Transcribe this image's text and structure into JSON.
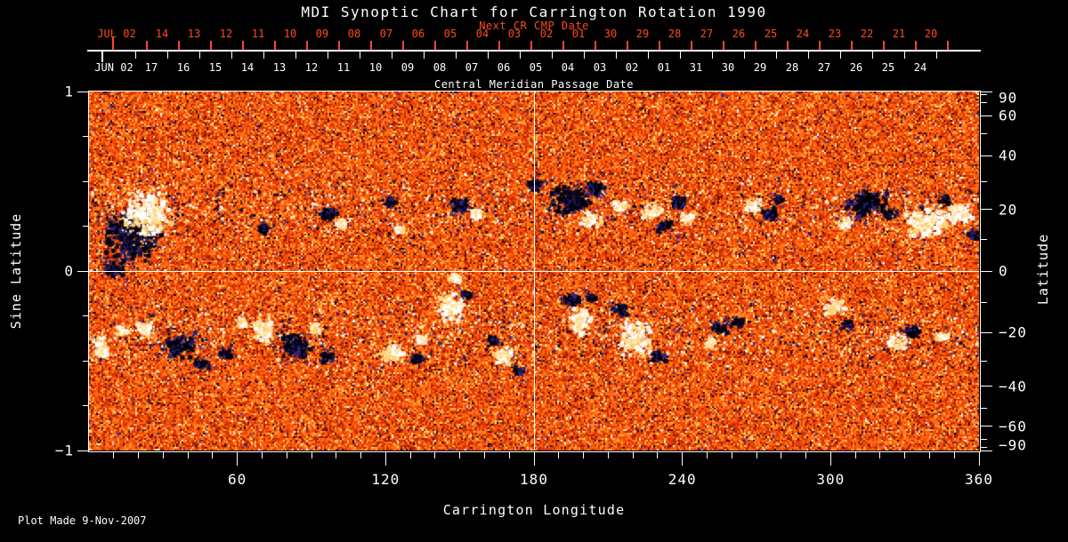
{
  "chart_data": {
    "type": "heatmap",
    "title": "MDI Synoptic Chart for Carrington Rotation 1990",
    "footer": "Plot Made  9-Nov-2007",
    "xlabel": "Carrington Longitude",
    "x_range": [
      0,
      360
    ],
    "x_major_tick_values": [
      60,
      120,
      180,
      240,
      300,
      360
    ],
    "x_major_tick_labels": [
      "60",
      "120",
      "180",
      "240",
      "300",
      "360"
    ],
    "x_minor_step_deg": 10,
    "left_axis": {
      "label": "Sine Latitude",
      "range": [
        -1,
        1
      ],
      "tick_values": [
        1,
        0,
        -1
      ],
      "tick_labels": [
        "1",
        "0",
        "−1"
      ],
      "minor_tick_values": [
        0.75,
        0.5,
        0.25,
        -0.25,
        -0.5,
        -0.75
      ]
    },
    "right_axis": {
      "label": "Latitude",
      "scale": "sine-latitude",
      "tick_values": [
        90,
        60,
        40,
        20,
        0,
        -20,
        -40,
        -60,
        -90
      ],
      "tick_labels": [
        "90",
        "60",
        "40",
        "20",
        "0",
        "−20",
        "−40",
        "−60",
        "−90"
      ],
      "minor_tick_values": [
        80,
        70,
        50,
        30,
        10,
        -10,
        -30,
        -50,
        -70,
        -80
      ]
    },
    "crosshairs": {
      "longitude_deg": 180,
      "sine_latitude": 0
    },
    "top_axes": {
      "axis_title": "Central Meridian Passage Date",
      "next_cr": {
        "label": "Next CR CMP Date",
        "month_label": "JUL 02",
        "day_labels": [
          "14",
          "13",
          "12",
          "11",
          "10",
          "09",
          "08",
          "07",
          "06",
          "05",
          "04",
          "03",
          "02",
          "01",
          "30",
          "29",
          "28",
          "27",
          "26",
          "25",
          "24",
          "23",
          "22",
          "21",
          "20"
        ],
        "color": "#ff4a1c"
      },
      "cmp": {
        "month_label": "JUN 02",
        "day_labels": [
          "17",
          "16",
          "15",
          "14",
          "13",
          "12",
          "11",
          "10",
          "09",
          "08",
          "07",
          "06",
          "05",
          "04",
          "03",
          "02",
          "01",
          "31",
          "30",
          "29",
          "28",
          "27",
          "26",
          "25",
          "24"
        ],
        "color": "#ffffff"
      }
    },
    "colors": {
      "background": "#000000",
      "foreground": "#ffffff",
      "accent_red": "#ff4a1c"
    },
    "noise_palette": [
      [
        "#ff6a10",
        26
      ],
      [
        "#f24a08",
        17
      ],
      [
        "#e23808",
        13
      ],
      [
        "#c82c00",
        10
      ],
      [
        "#a82200",
        6
      ],
      [
        "#ff8826",
        9
      ],
      [
        "#ffa83a",
        5
      ],
      [
        "#ffc85c",
        4
      ],
      [
        "#ffe9ac",
        2
      ],
      [
        "#871700",
        3
      ],
      [
        "#4d0a00",
        1.5
      ],
      [
        "#1a1150",
        1.2
      ],
      [
        "#3330a8",
        1.0
      ],
      [
        "#000000",
        0.8
      ],
      [
        "#ffffff",
        0.5
      ]
    ],
    "feature_colors": {
      "negative_core": "#000008",
      "negative_fringe": "#2b2280",
      "positive_core": "#ffffff",
      "positive_fringe": "#ffe2a0"
    },
    "active_regions": [
      [
        17,
        12,
        34,
        30,
        "n"
      ],
      [
        23,
        19,
        30,
        26,
        "p"
      ],
      [
        10,
        1,
        14,
        10,
        "n"
      ],
      [
        70,
        14,
        7,
        5,
        "n"
      ],
      [
        96,
        19,
        11,
        8,
        "n"
      ],
      [
        101,
        16,
        6,
        5,
        "p"
      ],
      [
        121,
        23,
        7,
        6,
        "n"
      ],
      [
        125,
        14,
        6,
        4,
        "p"
      ],
      [
        149,
        22,
        12,
        9,
        "n"
      ],
      [
        156,
        19,
        7,
        5,
        "p"
      ],
      [
        180,
        29,
        10,
        6,
        "n"
      ],
      [
        194,
        24,
        24,
        18,
        "n"
      ],
      [
        204,
        28,
        12,
        8,
        "n"
      ],
      [
        202,
        17,
        13,
        9,
        "p"
      ],
      [
        214,
        22,
        8,
        6,
        "p"
      ],
      [
        227,
        20,
        13,
        9,
        "p"
      ],
      [
        232,
        15,
        9,
        6,
        "n"
      ],
      [
        238,
        23,
        9,
        7,
        "n"
      ],
      [
        242,
        18,
        8,
        6,
        "p"
      ],
      [
        268,
        22,
        11,
        8,
        "p"
      ],
      [
        275,
        19,
        10,
        8,
        "n"
      ],
      [
        278,
        24,
        6,
        4,
        "n"
      ],
      [
        305,
        16,
        9,
        6,
        "p"
      ],
      [
        314,
        23,
        24,
        16,
        "n"
      ],
      [
        324,
        19,
        8,
        5,
        "n"
      ],
      [
        338,
        16,
        26,
        18,
        "p"
      ],
      [
        351,
        19,
        16,
        12,
        "p"
      ],
      [
        345,
        24,
        8,
        5,
        "n"
      ],
      [
        357,
        12,
        7,
        5,
        "n"
      ],
      [
        4,
        -25,
        10,
        12,
        "p"
      ],
      [
        13,
        -19,
        8,
        6,
        "p"
      ],
      [
        22,
        -18,
        10,
        8,
        "p"
      ],
      [
        36,
        -24,
        20,
        16,
        "n"
      ],
      [
        45,
        -31,
        10,
        6,
        "n"
      ],
      [
        55,
        -27,
        8,
        6,
        "n"
      ],
      [
        61,
        -16,
        7,
        5,
        "p"
      ],
      [
        70,
        -19,
        12,
        14,
        "p"
      ],
      [
        83,
        -24,
        18,
        16,
        "n"
      ],
      [
        91,
        -18,
        7,
        5,
        "p"
      ],
      [
        96,
        -28,
        9,
        6,
        "n"
      ],
      [
        122,
        -27,
        13,
        11,
        "p"
      ],
      [
        132,
        -29,
        8,
        6,
        "n"
      ],
      [
        134,
        -22,
        7,
        5,
        "p"
      ],
      [
        146,
        -11,
        15,
        17,
        "p"
      ],
      [
        148,
        -2,
        9,
        7,
        "p"
      ],
      [
        152,
        -7,
        7,
        5,
        "n"
      ],
      [
        167,
        -28,
        11,
        12,
        "p"
      ],
      [
        163,
        -22,
        7,
        5,
        "n"
      ],
      [
        173,
        -33,
        7,
        5,
        "n"
      ],
      [
        194,
        -9,
        10,
        8,
        "n"
      ],
      [
        198,
        -16,
        13,
        16,
        "p"
      ],
      [
        203,
        -8,
        7,
        5,
        "n"
      ],
      [
        214,
        -12,
        10,
        8,
        "n"
      ],
      [
        221,
        -21,
        18,
        22,
        "p"
      ],
      [
        230,
        -28,
        8,
        6,
        "n"
      ],
      [
        251,
        -23,
        8,
        6,
        "p"
      ],
      [
        254,
        -18,
        9,
        7,
        "n"
      ],
      [
        261,
        -16,
        7,
        5,
        "n"
      ],
      [
        301,
        -11,
        13,
        10,
        "p"
      ],
      [
        306,
        -17,
        8,
        6,
        "n"
      ],
      [
        326,
        -23,
        12,
        10,
        "p"
      ],
      [
        332,
        -19,
        9,
        7,
        "n"
      ],
      [
        344,
        -21,
        7,
        5,
        "p"
      ]
    ]
  }
}
